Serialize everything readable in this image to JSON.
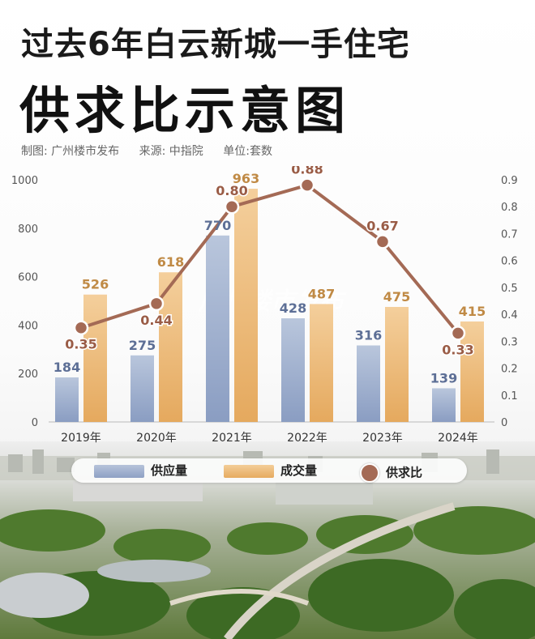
{
  "header": {
    "title_line1": "过去6年白云新城一手住宅",
    "title_line2": "供求比示意图"
  },
  "meta": {
    "maker": "制图: 广州楼市发布",
    "source": "来源: 中指院",
    "unit": "单位:套数"
  },
  "watermark": "广州楼市发布",
  "colors": {
    "supply": "#8c9fc2",
    "deal": "#e9b26b",
    "ratio": "#a46a55",
    "supply_label": "#5d6f96",
    "deal_label": "#c08a45",
    "ratio_label": "#9a5c46"
  },
  "chart_data": {
    "type": "bar",
    "title": "",
    "categories": [
      "2019年",
      "2020年",
      "2021年",
      "2022年",
      "2023年",
      "2024年"
    ],
    "series": [
      {
        "name": "供应量",
        "type": "bar",
        "axis": "left",
        "values": [
          184,
          275,
          770,
          428,
          316,
          139
        ]
      },
      {
        "name": "成交量",
        "type": "bar",
        "axis": "left",
        "values": [
          526,
          618,
          963,
          487,
          475,
          415
        ]
      },
      {
        "name": "供求比",
        "type": "line",
        "axis": "right",
        "values": [
          0.35,
          0.44,
          0.8,
          0.88,
          0.67,
          0.33
        ]
      }
    ],
    "ylim_left": [
      0,
      1000
    ],
    "yticks_left": [
      0,
      200,
      400,
      600,
      800,
      1000
    ],
    "ylim_right": [
      0,
      0.9
    ],
    "yticks_right": [
      "0",
      "0.1",
      "0.2",
      "0.3",
      "0.4",
      "0.5",
      "0.6",
      "0.7",
      "0.8",
      "0.9"
    ],
    "ratio_labels": [
      "0.35",
      "0.44",
      "0.80",
      "0.88",
      "0.67",
      "0.33"
    ],
    "legend": [
      "供应量",
      "成交量",
      "供求比"
    ],
    "legend_position": "bottom",
    "grid": false
  }
}
